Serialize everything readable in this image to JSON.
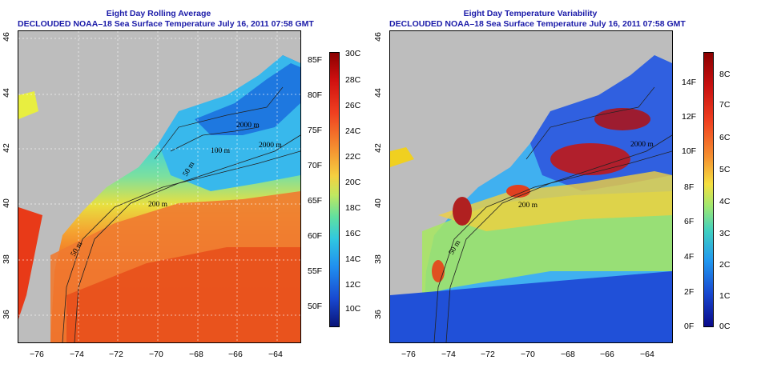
{
  "left_panel": {
    "title": "Eight Day Rolling Average",
    "subtitle": "DECLOUDED NOAA–18 Sea Surface Temperature July 16, 2011 07:58 GMT",
    "x_ticks": [
      "−76",
      "−74",
      "−72",
      "−70",
      "−68",
      "−66",
      "−64"
    ],
    "y_ticks": [
      "46",
      "44",
      "42",
      "40",
      "38",
      "36"
    ],
    "contour_labels": [
      "2000 m",
      "100 m",
      "50 m",
      "200 m",
      "50 m",
      "2000 m"
    ],
    "colorbar": {
      "f_labels": [
        "85F",
        "80F",
        "75F",
        "70F",
        "65F",
        "60F",
        "55F",
        "50F"
      ],
      "c_labels": [
        "30C",
        "28C",
        "26C",
        "24C",
        "22C",
        "20C",
        "18C",
        "16C",
        "14C",
        "12C",
        "10C"
      ]
    }
  },
  "right_panel": {
    "title": "Eight Day Temperature Variability",
    "subtitle": "DECLOUDED NOAA–18 Sea Surface Temperature July 16, 2011 07:58 GMT",
    "x_ticks": [
      "−76",
      "−74",
      "−72",
      "−70",
      "−68",
      "−66",
      "−64"
    ],
    "y_ticks": [
      "46",
      "44",
      "42",
      "40",
      "38",
      "36"
    ],
    "contour_labels": [
      "2000 m",
      "200 m",
      "50 m"
    ],
    "colorbar": {
      "f_labels": [
        "14F",
        "12F",
        "10F",
        "8F",
        "6F",
        "4F",
        "2F",
        "0F"
      ],
      "c_labels": [
        "8C",
        "7C",
        "6C",
        "5C",
        "4C",
        "3C",
        "2C",
        "1C",
        "0C"
      ]
    }
  },
  "colors": {
    "title_blue": "#1a1aa8",
    "land_gray": "#bdbdbd"
  }
}
